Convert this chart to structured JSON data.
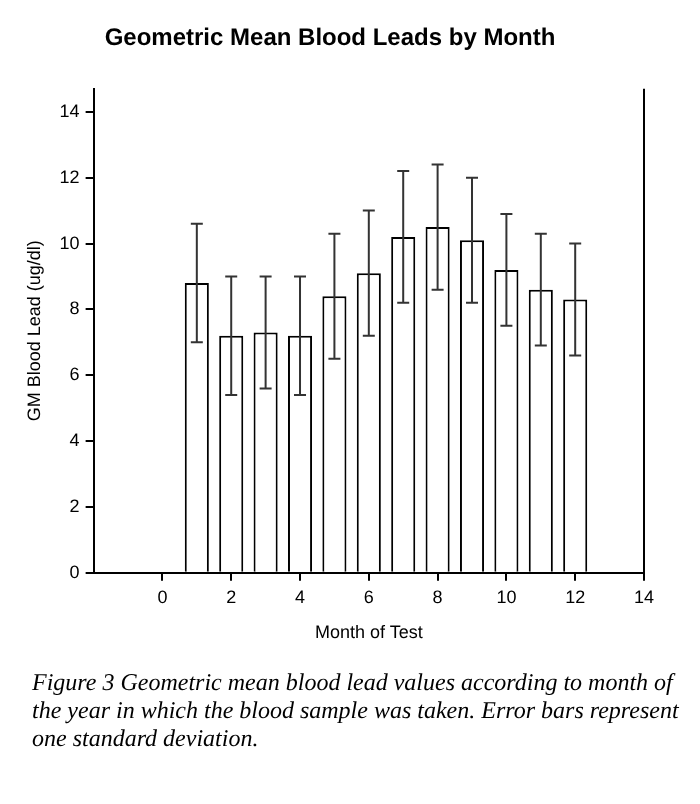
{
  "chart_data": {
    "type": "bar",
    "title": "Geometric Mean Blood Leads by Month",
    "xlabel": "Month of Test",
    "ylabel": "GM Blood Lead (ug/dl)",
    "x": [
      1,
      2,
      3,
      4,
      5,
      6,
      7,
      8,
      9,
      10,
      11,
      12
    ],
    "values": [
      8.8,
      7.2,
      7.3,
      7.2,
      8.4,
      9.1,
      10.2,
      10.5,
      10.1,
      9.2,
      8.6,
      8.3
    ],
    "errors": [
      1.8,
      1.8,
      1.7,
      1.8,
      1.9,
      1.9,
      2.0,
      1.9,
      1.9,
      1.7,
      1.7,
      1.7
    ],
    "color": "#ffffff",
    "xlim": [
      -2,
      14
    ],
    "xticks": [
      0,
      2,
      4,
      6,
      8,
      10,
      12,
      14
    ],
    "ylim": [
      0,
      14.7
    ],
    "yticks": [
      0,
      2,
      4,
      6,
      8,
      10,
      12,
      14
    ],
    "grid": false,
    "legend": false,
    "annotations": [
      "Figure 3 Geometric mean blood lead values according to month of the year in which the blood sample was taken. Error bars represent one standard deviation."
    ]
  }
}
